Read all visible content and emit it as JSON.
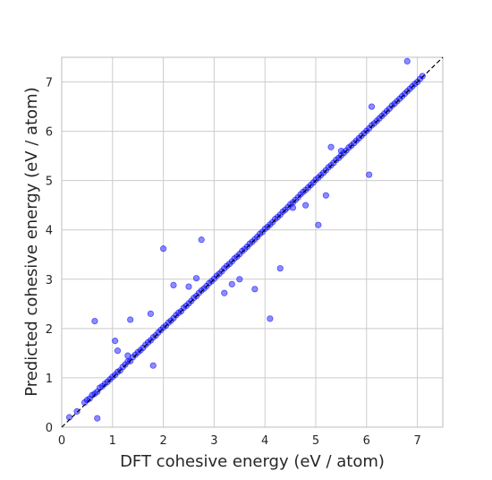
{
  "chart_data": {
    "type": "scatter",
    "xlabel": "DFT cohesive energy (eV / atom)",
    "ylabel": "Predicted cohesive energy (eV / atom)",
    "xlim": [
      0,
      7.5
    ],
    "ylim": [
      0,
      7.5
    ],
    "x_ticks": [
      "0",
      "1",
      "2",
      "3",
      "4",
      "5",
      "6",
      "7"
    ],
    "y_ticks": [
      "0",
      "1",
      "2",
      "3",
      "4",
      "5",
      "6",
      "7"
    ],
    "grid": true,
    "point_color": "#0000ff",
    "reference_line": {
      "style": "dashed",
      "color": "#000000",
      "from": [
        0,
        0
      ],
      "to": [
        7.5,
        7.5
      ]
    },
    "series": [
      {
        "x": [
          0.15,
          0.3,
          0.45,
          0.5,
          0.55,
          0.6,
          0.65,
          0.7,
          0.75,
          0.8,
          0.85,
          0.9,
          0.95,
          1.0,
          1.05,
          1.1,
          1.15,
          1.2,
          1.25,
          1.3,
          1.35,
          1.4,
          1.45,
          1.5,
          1.55,
          1.6,
          1.65,
          1.7,
          1.75,
          1.8,
          1.85,
          1.9,
          1.95,
          2.0,
          2.05,
          2.1,
          2.15,
          2.2,
          2.25,
          2.3,
          2.35,
          2.4,
          2.45,
          2.5,
          2.55,
          2.6,
          2.65,
          2.7,
          2.75,
          2.8,
          2.85,
          2.9,
          2.95,
          3.0,
          3.05,
          3.1,
          3.15,
          3.2,
          3.25,
          3.3,
          3.35,
          3.4,
          3.45,
          3.5,
          3.55,
          3.6,
          3.65,
          3.7,
          3.75,
          3.8,
          3.85,
          3.9,
          3.95,
          4.0,
          4.05,
          4.1,
          4.15,
          4.2,
          4.25,
          4.3,
          4.35,
          4.4,
          4.45,
          4.5,
          4.55,
          4.6,
          4.65,
          4.7,
          4.75,
          4.8,
          4.85,
          4.9,
          4.95,
          5.0,
          5.05,
          5.1,
          5.15,
          5.2,
          5.25,
          5.3,
          5.35,
          5.4,
          5.45,
          5.5,
          5.55,
          5.6,
          5.65,
          5.7,
          5.75,
          5.8,
          5.85,
          5.9,
          5.95,
          6.0,
          6.05,
          6.1,
          6.15,
          6.2,
          6.25,
          6.3,
          6.35,
          6.4,
          6.45,
          6.5,
          6.55,
          6.6,
          6.65,
          6.7,
          6.75,
          6.8,
          6.85,
          6.9,
          6.95,
          7.0,
          7.05,
          7.1,
          0.65,
          0.7,
          1.05,
          1.1,
          1.3,
          1.35,
          1.75,
          1.8,
          2.0,
          2.2,
          2.5,
          2.65,
          2.75,
          3.2,
          3.35,
          3.5,
          3.8,
          4.1,
          4.3,
          4.55,
          4.8,
          5.05,
          5.2,
          5.3,
          5.5,
          6.05,
          6.1,
          6.8
        ],
        "y": [
          0.2,
          0.32,
          0.5,
          0.55,
          0.58,
          0.65,
          0.68,
          0.72,
          0.8,
          0.83,
          0.88,
          0.92,
          0.97,
          1.02,
          1.06,
          1.12,
          1.15,
          1.22,
          1.27,
          1.33,
          1.34,
          1.42,
          1.47,
          1.52,
          1.56,
          1.61,
          1.67,
          1.72,
          1.76,
          1.82,
          1.86,
          1.92,
          1.97,
          2.02,
          2.06,
          2.12,
          2.16,
          2.21,
          2.27,
          2.32,
          2.35,
          2.42,
          2.46,
          2.51,
          2.56,
          2.62,
          2.66,
          2.72,
          2.77,
          2.81,
          2.86,
          2.92,
          2.96,
          3.01,
          3.07,
          3.11,
          3.16,
          3.22,
          3.27,
          3.31,
          3.36,
          3.42,
          3.46,
          3.51,
          3.57,
          3.61,
          3.66,
          3.72,
          3.76,
          3.81,
          3.86,
          3.92,
          3.96,
          4.02,
          4.06,
          4.11,
          4.16,
          4.22,
          4.26,
          4.31,
          4.37,
          4.41,
          4.46,
          4.52,
          4.56,
          4.61,
          4.66,
          4.72,
          4.77,
          4.81,
          4.86,
          4.91,
          4.96,
          5.02,
          5.06,
          5.11,
          5.16,
          5.21,
          5.27,
          5.31,
          5.36,
          5.42,
          5.46,
          5.51,
          5.56,
          5.61,
          5.67,
          5.71,
          5.76,
          5.81,
          5.86,
          5.91,
          5.96,
          6.01,
          6.06,
          6.12,
          6.16,
          6.21,
          6.26,
          6.31,
          6.36,
          6.41,
          6.46,
          6.52,
          6.56,
          6.61,
          6.66,
          6.71,
          6.76,
          6.81,
          6.86,
          6.91,
          6.96,
          7.0,
          7.06,
          7.12,
          2.15,
          0.18,
          1.75,
          1.55,
          1.45,
          2.18,
          2.3,
          1.25,
          3.62,
          2.88,
          2.85,
          3.02,
          3.8,
          2.72,
          2.9,
          3.0,
          2.8,
          2.2,
          3.22,
          4.45,
          4.5,
          4.1,
          4.7,
          5.68,
          5.6,
          5.12,
          6.5,
          7.42
        ]
      }
    ]
  }
}
